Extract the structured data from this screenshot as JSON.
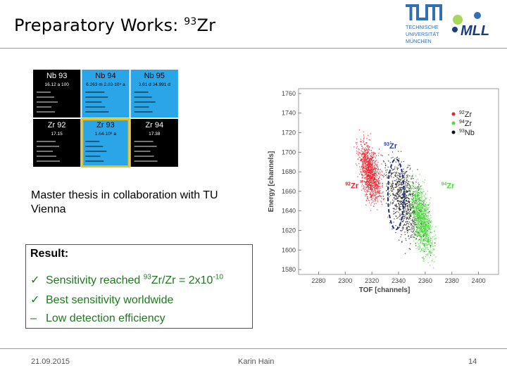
{
  "slide": {
    "title_pre": "Preparatory Works: ",
    "title_sup": "93",
    "title_post": "Zr",
    "tum_logo_lines": [
      "TECHNISCHE",
      "UNIVERSITÄT",
      "MÜNCHEN"
    ],
    "mll_logo_text": "MLL",
    "intro": "Master thesis in collaboration with TU Vienna",
    "result_heading": "Result:",
    "results": [
      {
        "marker": "✓",
        "pre": "Sensitivity reached ",
        "sup1": "93",
        "mid": "Zr/Zr = 2x10",
        "sup2": "-10"
      },
      {
        "marker": "✓",
        "text": "Best sensitivity worldwide"
      },
      {
        "marker": "–",
        "text": "Low detection efficiency"
      }
    ],
    "footer": {
      "date": "21.09.2015",
      "author": "Karin Hain",
      "page": "14"
    }
  },
  "nuclide_chart": {
    "cells": [
      {
        "name": "Nb 93",
        "info": "16.12 a   100",
        "fill": "#000000",
        "text": "#ffffff"
      },
      {
        "name": "Nb 94",
        "info": "6.263 m  2.03·10⁴ a",
        "fill": "#2aa6e8",
        "text": "#000000"
      },
      {
        "name": "Nb 95",
        "info": "3.61 d    34.991 d",
        "fill": "#2aa6e8",
        "text": "#000000"
      },
      {
        "name": "Zr 92",
        "info": "17.15",
        "fill": "#000000",
        "text": "#ffffff"
      },
      {
        "name": "Zr 93",
        "info": "1.64·10⁶ a",
        "fill": "#2aa6e8",
        "text": "#000000"
      },
      {
        "name": "Zr 94",
        "info": "17.38",
        "fill": "#000000",
        "text": "#ffffff"
      }
    ],
    "highlight": "#e8c020"
  },
  "chart_data": {
    "type": "scatter",
    "title": "",
    "xlabel": "TOF [channels]",
    "ylabel": "Energy [channels]",
    "xlim": [
      2265,
      2415
    ],
    "ylim": [
      1575,
      1765
    ],
    "xticks": [
      2280,
      2300,
      2320,
      2340,
      2360,
      2380,
      2400
    ],
    "yticks": [
      1580,
      1600,
      1620,
      1640,
      1660,
      1680,
      1700,
      1720,
      1740,
      1760
    ],
    "legend_position": "top-right",
    "series": [
      {
        "name": "92Zr",
        "sup": "92",
        "base": "Zr",
        "color": "#e8202a",
        "center": [
          2318,
          1680
        ],
        "spread": [
          5,
          22
        ]
      },
      {
        "name": "94Zr",
        "sup": "94",
        "base": "Zr",
        "color": "#4cdc3c",
        "center": [
          2357,
          1632
        ],
        "spread": [
          5,
          26
        ]
      },
      {
        "name": "93Nb",
        "sup": "93",
        "base": "Nb",
        "color": "#111111",
        "center": [
          2345,
          1650
        ],
        "spread": [
          9,
          30
        ]
      }
    ],
    "annotations": [
      {
        "sup": "93",
        "base": "Zr",
        "color": "#2a3fa0",
        "x": 2329,
        "y": 1704
      },
      {
        "sup": "92",
        "base": "Zr",
        "color": "#e8202a",
        "x": 2300,
        "y": 1663
      },
      {
        "sup": "94",
        "base": "Zr",
        "color": "#4cdc3c",
        "x": 2372,
        "y": 1663
      }
    ],
    "gate_ellipse": {
      "color": "#1a2e8c",
      "center": [
        2338,
        1657
      ],
      "radius": [
        6,
        36
      ]
    }
  }
}
